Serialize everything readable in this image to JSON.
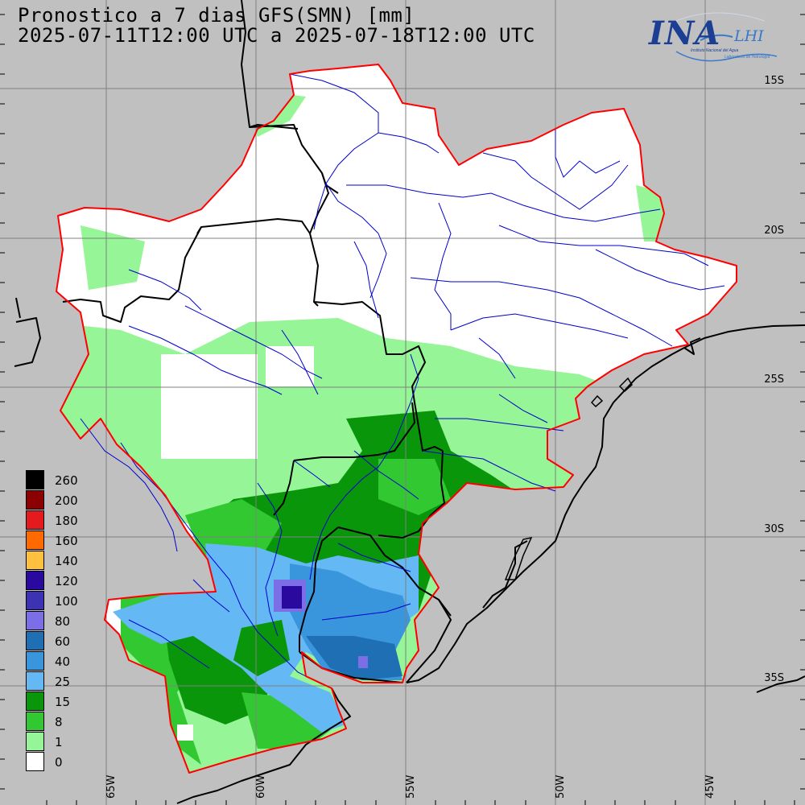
{
  "header": {
    "title_line1": "Pronostico a 7 dias GFS(SMN) [mm]",
    "title_line2": "2025-07-11T12:00 UTC a 2025-07-18T12:00 UTC"
  },
  "logo": {
    "name": "INA",
    "lab": "LHI",
    "subtitle_institute": "Instituto Nacional del Agua",
    "subtitle_lab": "Laboratorio de Hidrología"
  },
  "map": {
    "latitude_labels": [
      "15S",
      "20S",
      "25S",
      "30S",
      "35S"
    ],
    "longitude_labels": [
      "65W",
      "60W",
      "55W",
      "50W",
      "45W"
    ],
    "colors": {
      "background": "#c0c0c0",
      "basin_outline": "#ff0000",
      "rivers": "#0000cc",
      "borders": "#000000",
      "gridlines": "#808080"
    }
  },
  "legend": {
    "unit": "mm",
    "items": [
      {
        "label": "260",
        "color": "#000000"
      },
      {
        "label": "200",
        "color": "#8b0000"
      },
      {
        "label": "180",
        "color": "#e41a1c"
      },
      {
        "label": "160",
        "color": "#ff6a00"
      },
      {
        "label": "140",
        "color": "#ffc040"
      },
      {
        "label": "120",
        "color": "#2a0a9e"
      },
      {
        "label": "100",
        "color": "#3c32b4"
      },
      {
        "label": "80",
        "color": "#7b6ee6"
      },
      {
        "label": "60",
        "color": "#1f6fb4"
      },
      {
        "label": "40",
        "color": "#3a96dc"
      },
      {
        "label": "25",
        "color": "#64b9f5"
      },
      {
        "label": "15",
        "color": "#0a960a"
      },
      {
        "label": "8",
        "color": "#32c832"
      },
      {
        "label": "1",
        "color": "#96f596"
      },
      {
        "label": "0",
        "color": "#ffffff"
      }
    ]
  }
}
